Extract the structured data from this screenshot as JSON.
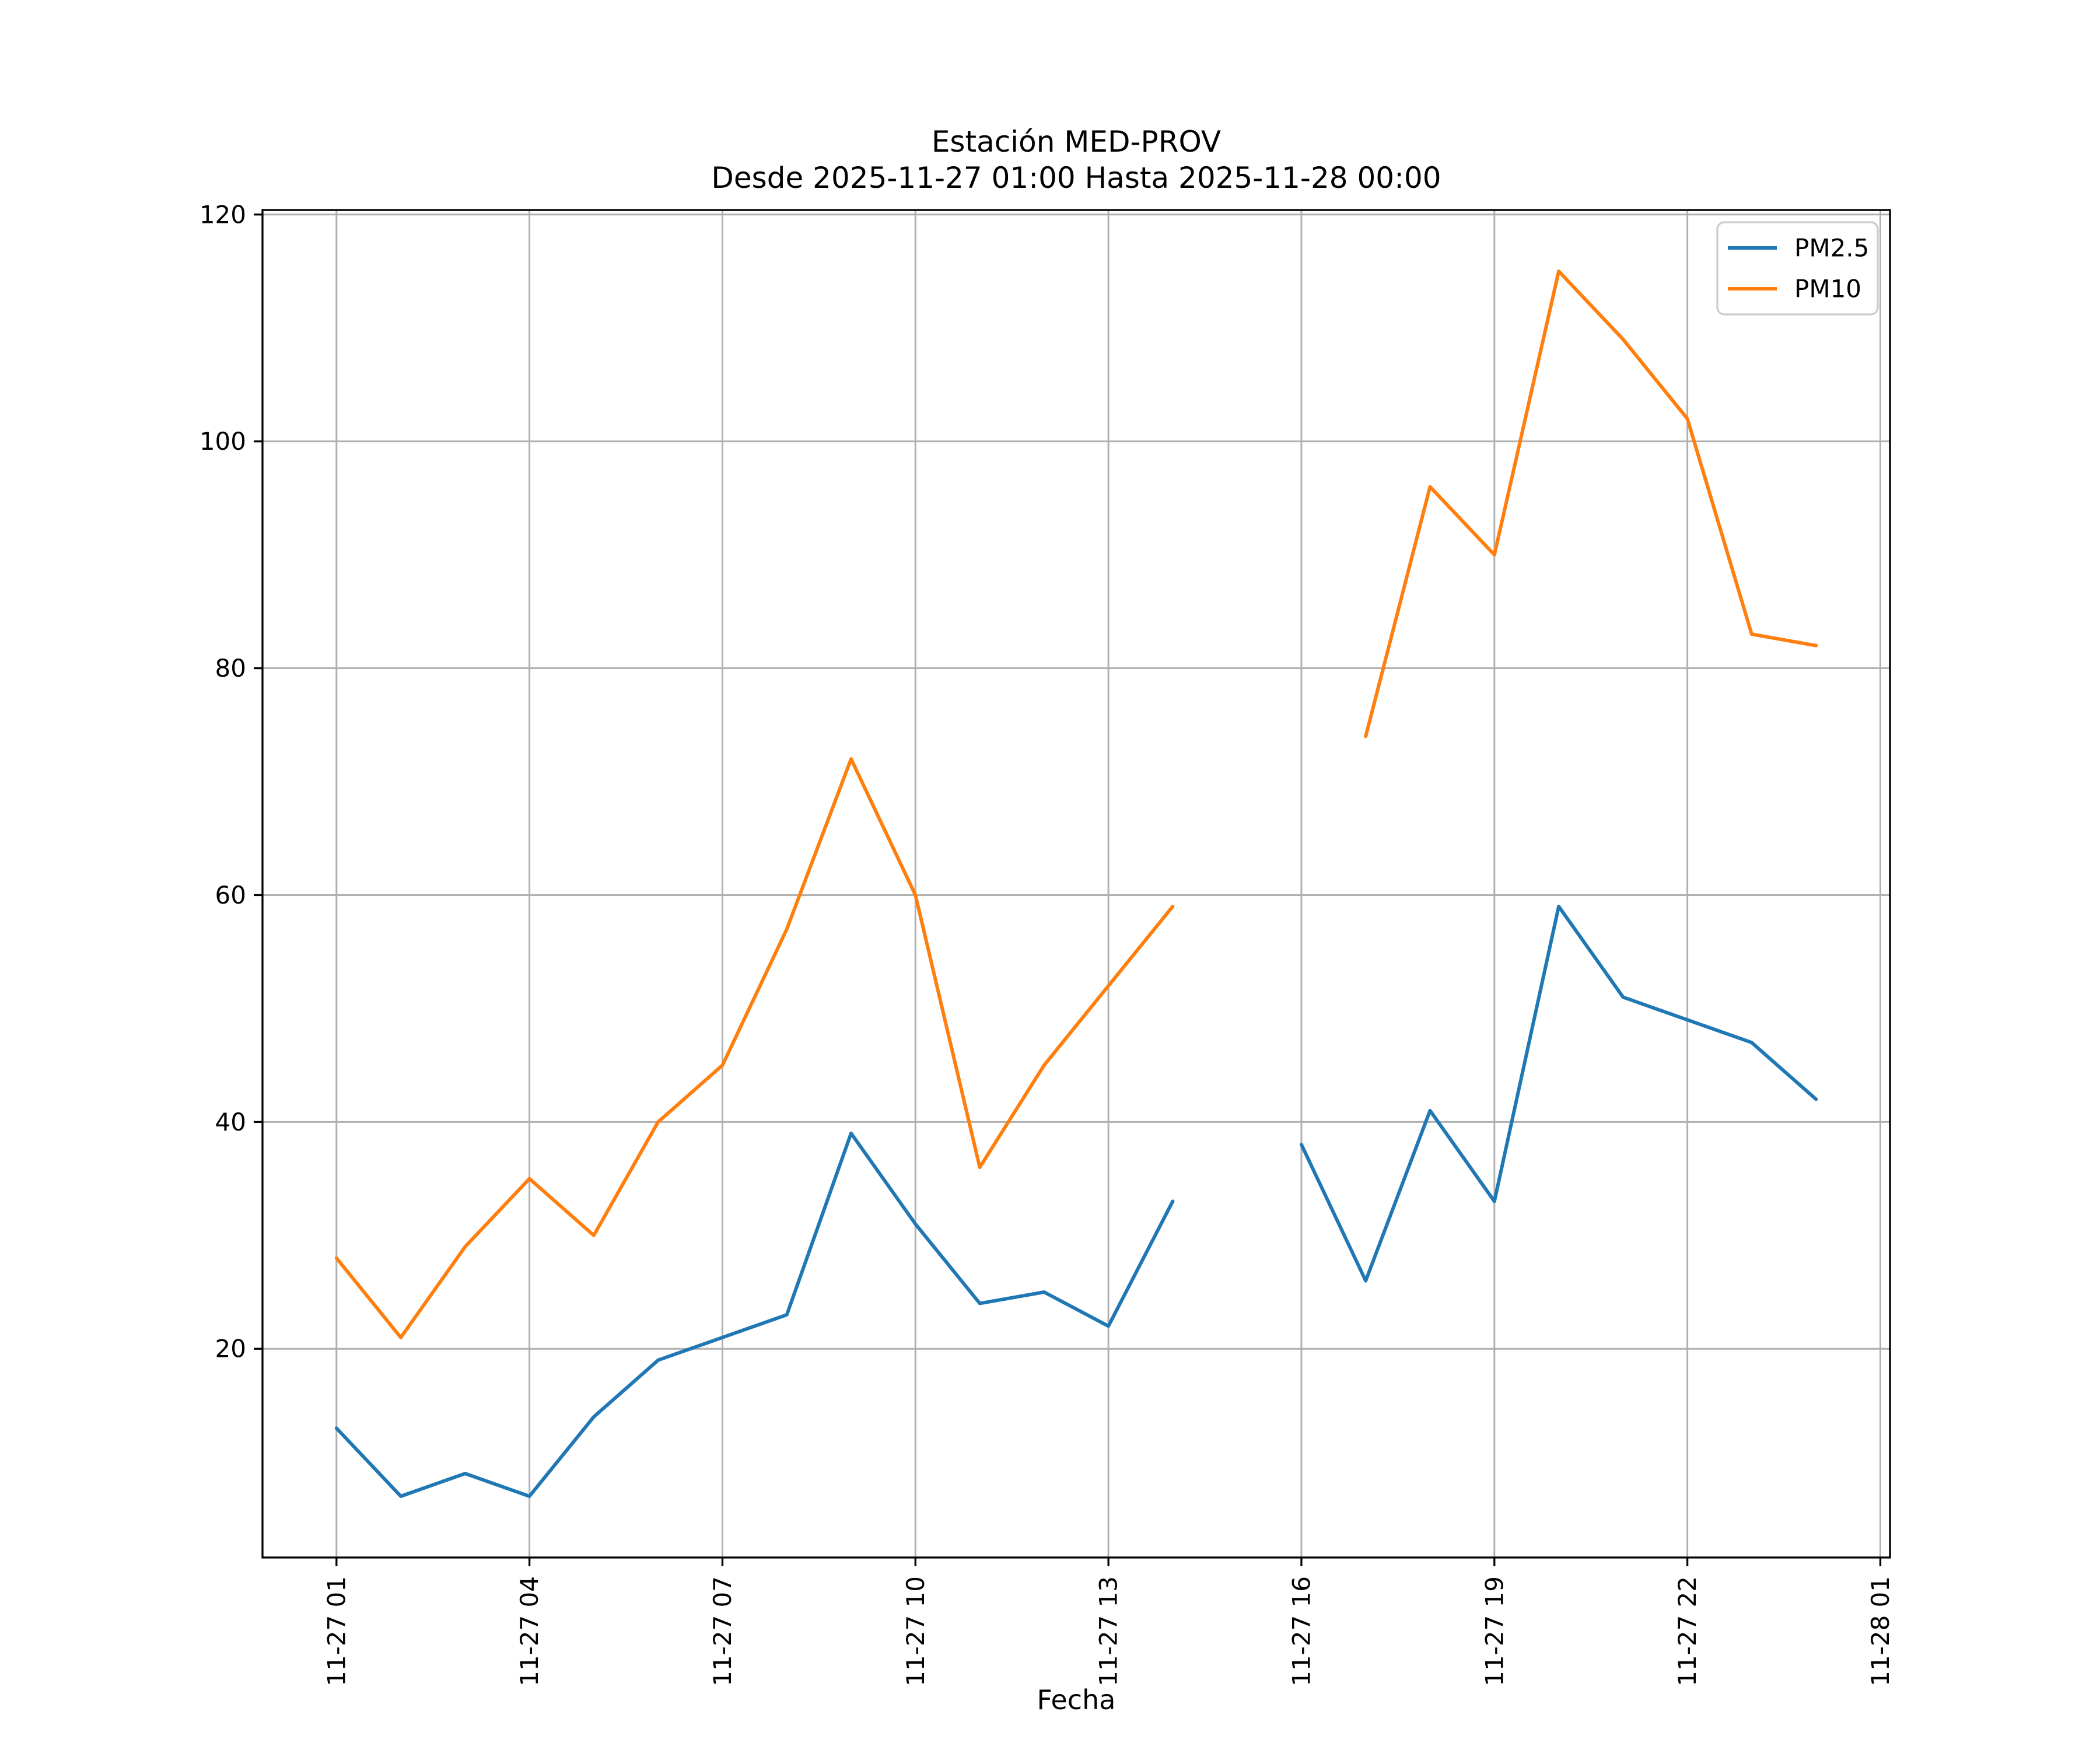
{
  "chart_data": {
    "type": "line",
    "title": "Estación MED-PROV",
    "subtitle": "Desde 2025-11-27 01:00 Hasta 2025-11-28 00:00",
    "xlabel": "Fecha",
    "ylabel": "",
    "grid": true,
    "grid_color": "#b0b0b0",
    "axis_color": "#000000",
    "legend_position": "upper right",
    "legend_border_color": "#cccccc",
    "x": [
      1,
      2,
      3,
      4,
      5,
      6,
      7,
      8,
      9,
      10,
      11,
      12,
      13,
      14,
      15,
      16,
      17,
      18,
      19,
      20,
      21,
      22,
      23,
      24
    ],
    "x_tick_hours": [
      1,
      4,
      7,
      10,
      13,
      16,
      19,
      22,
      25
    ],
    "x_tick_labels": [
      "11-27 01",
      "11-27 04",
      "11-27 07",
      "11-27 10",
      "11-27 13",
      "11-27 16",
      "11-27 19",
      "11-27 22",
      "11-28 01"
    ],
    "y_ticks": [
      20,
      40,
      60,
      80,
      100,
      120
    ],
    "xlim": [
      -0.15,
      25.15
    ],
    "ylim": [
      1.6,
      120.4
    ],
    "series": [
      {
        "name": "PM2.5",
        "color": "#1f77b4",
        "values": [
          13,
          7,
          9,
          7,
          14,
          19,
          21,
          23,
          39,
          31,
          24,
          25,
          22,
          33,
          null,
          38,
          26,
          41,
          33,
          59,
          51,
          49,
          47,
          42
        ]
      },
      {
        "name": "PM10",
        "color": "#ff7f0e",
        "values": [
          28,
          21,
          29,
          35,
          30,
          40,
          45,
          57,
          72,
          60,
          36,
          45,
          52,
          59,
          null,
          null,
          74,
          96,
          90,
          115,
          109,
          102,
          83,
          82
        ]
      }
    ]
  }
}
